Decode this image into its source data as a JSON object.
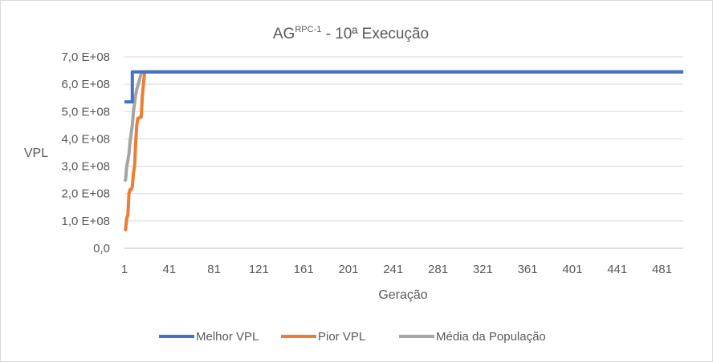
{
  "chart_data": {
    "type": "line",
    "title": "AG",
    "title_superscript": "RPC-1",
    "title_suffix": " - 10ª Execução",
    "xlabel": "Geração",
    "ylabel": "VPL",
    "xlim": [
      1,
      500
    ],
    "ylim": [
      0,
      700000000
    ],
    "x_ticks": [
      "1",
      "41",
      "81",
      "121",
      "161",
      "201",
      "241",
      "281",
      "321",
      "361",
      "401",
      "441",
      "481"
    ],
    "y_ticks": [
      "0,0",
      "1,0 E+08",
      "2,0 E+08",
      "3,0 E+08",
      "4,0 E+08",
      "5,0 E+08",
      "6,0 E+08",
      "7,0 E+08"
    ],
    "y_tick_values": [
      0,
      100000000,
      200000000,
      300000000,
      400000000,
      500000000,
      600000000,
      700000000
    ],
    "grid": "horizontal",
    "legend_position": "bottom",
    "series": [
      {
        "name": "Melhor VPL",
        "color": "#4472c4",
        "points": [
          [
            1,
            535000000
          ],
          [
            8,
            535000000
          ],
          [
            8,
            645000000
          ],
          [
            500,
            645000000
          ]
        ]
      },
      {
        "name": "Pior VPL",
        "color": "#ed7d31",
        "points": [
          [
            1,
            65000000
          ],
          [
            2,
            68000000
          ],
          [
            3,
            110000000
          ],
          [
            4,
            120000000
          ],
          [
            5,
            200000000
          ],
          [
            6,
            215000000
          ],
          [
            7,
            215000000
          ],
          [
            8,
            225000000
          ],
          [
            9,
            275000000
          ],
          [
            10,
            300000000
          ],
          [
            11,
            380000000
          ],
          [
            12,
            450000000
          ],
          [
            13,
            475000000
          ],
          [
            14,
            475000000
          ],
          [
            15,
            480000000
          ],
          [
            16,
            480000000
          ],
          [
            17,
            560000000
          ],
          [
            18,
            600000000
          ],
          [
            19,
            645000000
          ],
          [
            500,
            645000000
          ]
        ]
      },
      {
        "name": "Média da População",
        "color": "#a5a5a5",
        "points": [
          [
            1,
            245000000
          ],
          [
            2,
            250000000
          ],
          [
            3,
            300000000
          ],
          [
            4,
            320000000
          ],
          [
            5,
            345000000
          ],
          [
            6,
            390000000
          ],
          [
            7,
            420000000
          ],
          [
            8,
            450000000
          ],
          [
            9,
            500000000
          ],
          [
            10,
            530000000
          ],
          [
            11,
            560000000
          ],
          [
            12,
            580000000
          ],
          [
            13,
            595000000
          ],
          [
            14,
            610000000
          ],
          [
            15,
            625000000
          ],
          [
            16,
            640000000
          ],
          [
            17,
            645000000
          ],
          [
            500,
            645000000
          ]
        ]
      }
    ]
  }
}
